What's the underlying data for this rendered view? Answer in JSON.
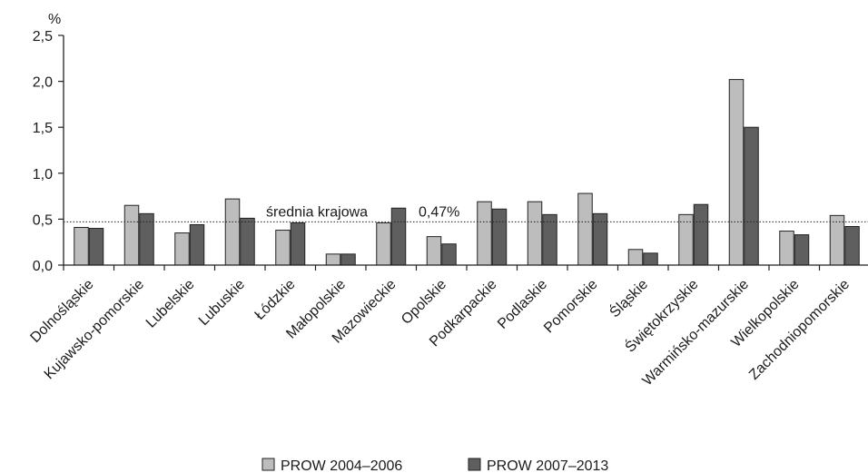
{
  "chart_data": {
    "type": "bar",
    "ylabel": "%",
    "ylim": [
      0,
      2.5
    ],
    "yticks": [
      "0,0",
      "0,5",
      "1,0",
      "1,5",
      "2,0",
      "2,5"
    ],
    "categories": [
      "Dolnośląskie",
      "Kujawsko-pomorskie",
      "Lubelskie",
      "Lubuskie",
      "Łódzkie",
      "Małopolskie",
      "Mazowieckie",
      "Opolskie",
      "Podkarpackie",
      "Podlaskie",
      "Pomorskie",
      "Śląskie",
      "Świętokrzyskie",
      "Warmińsko-mazurskie",
      "Wielkopolskie",
      "Zachodniopomorskie"
    ],
    "series": [
      {
        "name": "PROW 2004–2006",
        "color": "#bdbdbd",
        "values": [
          0.41,
          0.65,
          0.35,
          0.72,
          0.38,
          0.12,
          0.46,
          0.31,
          0.69,
          0.69,
          0.78,
          0.17,
          0.55,
          2.02,
          0.37,
          0.54
        ]
      },
      {
        "name": "PROW 2007–2013",
        "color": "#5f5f5f",
        "values": [
          0.4,
          0.56,
          0.44,
          0.51,
          0.46,
          0.12,
          0.62,
          0.23,
          0.61,
          0.55,
          0.56,
          0.13,
          0.66,
          1.5,
          0.33,
          0.42
        ]
      }
    ],
    "reference_line": {
      "value": 0.47,
      "label": "średnia krajowa",
      "value_label": "0,47%",
      "style": "dotted"
    },
    "grid": false,
    "legend_position": "bottom"
  }
}
